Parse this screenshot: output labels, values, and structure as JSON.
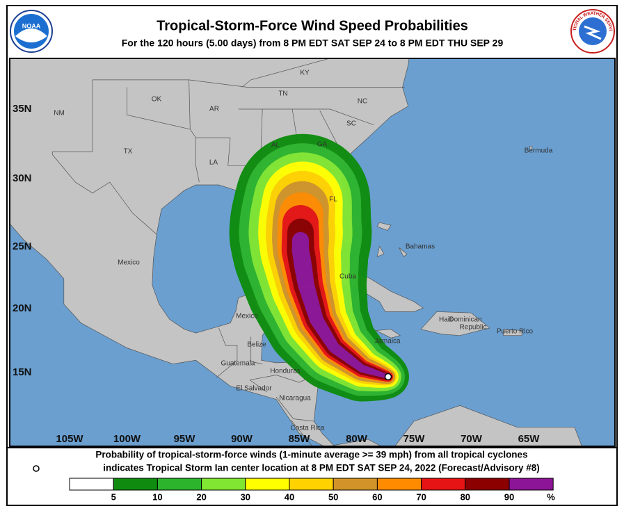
{
  "header": {
    "title": "Tropical-Storm-Force Wind Speed Probabilities",
    "subtitle": "For the 120 hours (5.00 days) from 8 PM EDT SAT SEP 24 to 8 PM EDT THU SEP 29"
  },
  "logos": {
    "noaa": "NOAA",
    "nws": "NATIONAL WEATHER SERVICE"
  },
  "map": {
    "lat_labels": [
      "35N",
      "30N",
      "25N",
      "20N",
      "15N"
    ],
    "lon_labels": [
      "105W",
      "100W",
      "95W",
      "90W",
      "85W",
      "80W",
      "75W",
      "70W",
      "65W"
    ],
    "place_labels": [
      "KY",
      "TN",
      "NC",
      "SC",
      "OK",
      "AR",
      "NM",
      "TX",
      "LA",
      "AL",
      "GA",
      "FL",
      "Bermuda",
      "Bahamas",
      "Mexico",
      "Cuba",
      "Haiti",
      "Dominican",
      "Republic",
      "Puerto Rico",
      "Jamaica",
      "Mexico",
      "Belize",
      "Guatemala",
      "Honduras",
      "El Salvador",
      "Nicaragua",
      "Costa Rica"
    ]
  },
  "caption": [
    "Probability of tropical-storm-force winds (1-minute average >= 39 mph) from all tropical cyclones",
    "indicates Tropical Storm Ian center location at 8 PM EDT SAT SEP 24, 2022 (Forecast/Advisory #8)"
  ],
  "legend": {
    "colors": [
      "#ffffff",
      "#0f8c0f",
      "#2db42d",
      "#80e632",
      "#ffff00",
      "#ffd200",
      "#d29428",
      "#ff8c00",
      "#e61414",
      "#8c0000",
      "#8c1496"
    ],
    "ticks": [
      5,
      10,
      20,
      30,
      40,
      50,
      60,
      70,
      80,
      90
    ],
    "unit": "%"
  }
}
